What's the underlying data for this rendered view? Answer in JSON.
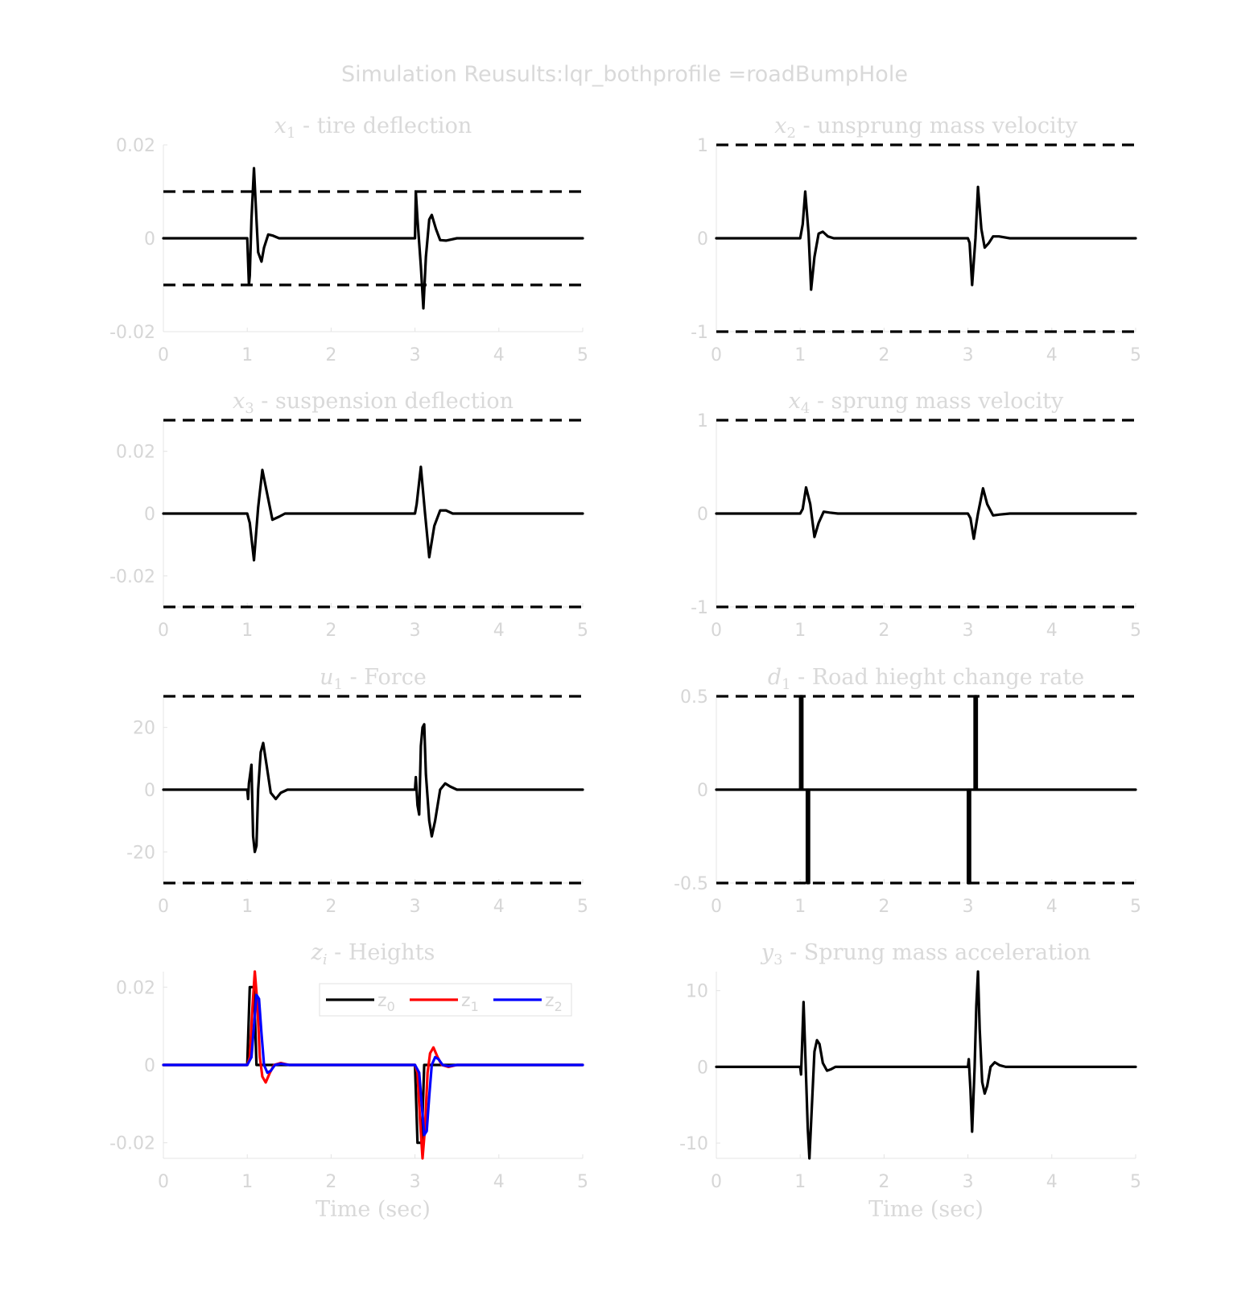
{
  "figure": {
    "title": "Simulation Reusults:lqr_bothprofile =roadBumpHole"
  },
  "chart_data": [
    {
      "type": "line",
      "title_math": "x",
      "title_sub": "1",
      "title_text": " - tire deflection",
      "xlabel": "",
      "xlim": [
        0,
        5
      ],
      "ylim": [
        -0.02,
        0.02
      ],
      "xticks": [
        "0",
        "1",
        "2",
        "3",
        "4",
        "5"
      ],
      "yticks": [
        {
          "v": 0.02,
          "t": "0.02"
        },
        {
          "v": 0,
          "t": "0"
        },
        {
          "v": -0.02,
          "t": "-0.02"
        }
      ],
      "bounds": [
        0.01,
        -0.01
      ],
      "series": [
        {
          "color": "#000000",
          "x": [
            0,
            1.0,
            1.02,
            1.03,
            1.05,
            1.08,
            1.11,
            1.13,
            1.17,
            1.2,
            1.25,
            1.3,
            1.38,
            1.5,
            3.0,
            3.01,
            3.03,
            3.07,
            3.1,
            3.13,
            3.17,
            3.2,
            3.25,
            3.3,
            3.37,
            3.5,
            5
          ],
          "y": [
            0,
            0,
            -0.01,
            -0.008,
            0.004,
            0.015,
            0.004,
            -0.003,
            -0.005,
            -0.002,
            0.0008,
            0.0006,
            0,
            0,
            0,
            0.01,
            0.004,
            -0.006,
            -0.015,
            -0.004,
            0.004,
            0.005,
            0.002,
            -0.0004,
            -0.0005,
            0,
            0
          ]
        }
      ]
    },
    {
      "type": "line",
      "title_math": "x",
      "title_sub": "2",
      "title_text": " - unsprung mass velocity",
      "xlabel": "",
      "xlim": [
        0,
        5
      ],
      "ylim": [
        -1,
        1
      ],
      "xticks": [
        "0",
        "1",
        "2",
        "3",
        "4",
        "5"
      ],
      "yticks": [
        {
          "v": 1,
          "t": "1"
        },
        {
          "v": 0,
          "t": "0"
        },
        {
          "v": -1,
          "t": "-1"
        }
      ],
      "bounds": [
        1,
        -1
      ],
      "series": [
        {
          "color": "#000000",
          "x": [
            0,
            1.0,
            1.03,
            1.06,
            1.1,
            1.13,
            1.17,
            1.22,
            1.27,
            1.33,
            1.4,
            1.55,
            3.0,
            3.02,
            3.05,
            3.09,
            3.12,
            3.16,
            3.2,
            3.25,
            3.3,
            3.37,
            3.5,
            5
          ],
          "y": [
            0,
            0,
            0.15,
            0.5,
            0.05,
            -0.55,
            -0.2,
            0.05,
            0.07,
            0.02,
            0,
            0,
            0,
            -0.05,
            -0.5,
            0,
            0.55,
            0.1,
            -0.1,
            -0.05,
            0.02,
            0.02,
            0,
            0
          ]
        }
      ]
    },
    {
      "type": "line",
      "title_math": "x",
      "title_sub": "3",
      "title_text": " - suspension deflection",
      "xlabel": "",
      "xlim": [
        0,
        5
      ],
      "ylim": [
        -0.03,
        0.03
      ],
      "xticks": [
        "0",
        "1",
        "2",
        "3",
        "4",
        "5"
      ],
      "yticks": [
        {
          "v": 0.02,
          "t": "0.02"
        },
        {
          "v": 0,
          "t": "0"
        },
        {
          "v": -0.02,
          "t": "-0.02"
        }
      ],
      "bounds": [
        0.03,
        -0.03
      ],
      "series": [
        {
          "color": "#000000",
          "x": [
            0,
            1.0,
            1.03,
            1.08,
            1.13,
            1.18,
            1.24,
            1.3,
            1.38,
            1.45,
            1.55,
            3.0,
            3.02,
            3.07,
            3.12,
            3.17,
            3.23,
            3.3,
            3.37,
            3.45,
            3.55,
            5
          ],
          "y": [
            0,
            0,
            -0.003,
            -0.015,
            0.002,
            0.014,
            0.006,
            -0.002,
            -0.001,
            0,
            0,
            0,
            0.003,
            0.015,
            0,
            -0.014,
            -0.004,
            0.001,
            0.001,
            0,
            0,
            0
          ]
        }
      ]
    },
    {
      "type": "line",
      "title_math": "x",
      "title_sub": "4",
      "title_text": " - sprung mass velocity",
      "xlabel": "",
      "xlim": [
        0,
        5
      ],
      "ylim": [
        -1,
        1
      ],
      "xticks": [
        "0",
        "1",
        "2",
        "3",
        "4",
        "5"
      ],
      "yticks": [
        {
          "v": 1,
          "t": "1"
        },
        {
          "v": 0,
          "t": "0"
        },
        {
          "v": -1,
          "t": "-1"
        }
      ],
      "bounds": [
        1,
        -1
      ],
      "series": [
        {
          "color": "#000000",
          "x": [
            0,
            1.0,
            1.03,
            1.07,
            1.12,
            1.17,
            1.22,
            1.28,
            1.35,
            1.45,
            3.0,
            3.03,
            3.07,
            3.12,
            3.18,
            3.23,
            3.3,
            3.38,
            3.5,
            5
          ],
          "y": [
            0,
            0,
            0.05,
            0.28,
            0.1,
            -0.25,
            -0.1,
            0.02,
            0.01,
            0,
            0,
            -0.05,
            -0.27,
            0,
            0.27,
            0.1,
            -0.02,
            -0.01,
            0,
            0
          ]
        }
      ]
    },
    {
      "type": "line",
      "title_math": "u",
      "title_sub": "1",
      "title_text": " - Force",
      "xlabel": "",
      "xlim": [
        0,
        5
      ],
      "ylim": [
        -30,
        30
      ],
      "xticks": [
        "0",
        "1",
        "2",
        "3",
        "4",
        "5"
      ],
      "yticks": [
        {
          "v": 20,
          "t": "20"
        },
        {
          "v": 0,
          "t": "0"
        },
        {
          "v": -20,
          "t": "-20"
        }
      ],
      "bounds": [
        30,
        -30
      ],
      "series": [
        {
          "color": "#000000",
          "x": [
            0,
            1.0,
            1.01,
            1.02,
            1.03,
            1.05,
            1.07,
            1.09,
            1.11,
            1.13,
            1.16,
            1.19,
            1.23,
            1.28,
            1.34,
            1.4,
            1.48,
            1.55,
            3.0,
            3.01,
            3.03,
            3.05,
            3.07,
            3.09,
            3.11,
            3.13,
            3.17,
            3.2,
            3.24,
            3.3,
            3.36,
            3.42,
            3.5,
            3.6,
            5
          ],
          "y": [
            0,
            0,
            -3,
            2,
            4,
            8,
            -15,
            -20,
            -18,
            0,
            12,
            15,
            8,
            -1,
            -3,
            -1,
            0,
            0,
            0,
            4,
            -5,
            -8,
            14,
            20,
            21,
            5,
            -10,
            -15,
            -10,
            0,
            2,
            1,
            0,
            0,
            0
          ]
        }
      ]
    },
    {
      "type": "line",
      "title_math": "d",
      "title_sub": "1",
      "title_text": " - Road hieght change rate",
      "xlabel": "",
      "xlim": [
        0,
        5
      ],
      "ylim": [
        -0.5,
        0.5
      ],
      "xticks": [
        "0",
        "1",
        "2",
        "3",
        "4",
        "5"
      ],
      "yticks": [
        {
          "v": 0.5,
          "t": "0.5"
        },
        {
          "v": 0,
          "t": "0"
        },
        {
          "v": -0.5,
          "t": "-0.5"
        }
      ],
      "bounds": [
        0.5,
        -0.5
      ],
      "series": [
        {
          "color": "#000000",
          "x": [
            0,
            1.0,
            1.0,
            1.005,
            1.005,
            1.01,
            1.01,
            1.015,
            1.015,
            1.02,
            1.02,
            1.025,
            1.025,
            1.03,
            1.03,
            1.08,
            1.08,
            1.085,
            1.085,
            1.09,
            1.09,
            1.095,
            1.095,
            1.1,
            1.1,
            1.105,
            1.105,
            1.11,
            1.11,
            3.0,
            3.0,
            3.005,
            3.005,
            3.01,
            3.01,
            3.015,
            3.015,
            3.02,
            3.02,
            3.025,
            3.025,
            3.03,
            3.03,
            3.08,
            3.08,
            3.085,
            3.085,
            3.09,
            3.09,
            3.095,
            3.095,
            3.1,
            3.1,
            3.105,
            3.105,
            3.11,
            3.11,
            5
          ],
          "y": [
            0,
            0,
            0.5,
            0.5,
            0,
            0,
            0.5,
            0.5,
            0,
            0,
            0.5,
            0.5,
            0,
            0,
            0,
            0,
            -0.5,
            -0.5,
            0,
            0,
            -0.5,
            -0.5,
            0,
            0,
            -0.5,
            -0.5,
            0,
            0,
            0,
            0,
            -0.5,
            -0.5,
            0,
            0,
            -0.5,
            -0.5,
            0,
            0,
            -0.5,
            -0.5,
            0,
            0,
            0,
            0,
            0.5,
            0.5,
            0,
            0,
            0.5,
            0.5,
            0,
            0,
            0.5,
            0.5,
            0,
            0,
            0,
            0
          ]
        }
      ]
    },
    {
      "type": "line",
      "title_math": "z",
      "title_sub": "i",
      "title_text": " - Heights",
      "xlabel": "Time (sec)",
      "xlim": [
        0,
        5
      ],
      "ylim": [
        -0.024,
        0.024
      ],
      "xticks": [
        "0",
        "1",
        "2",
        "3",
        "4",
        "5"
      ],
      "yticks": [
        {
          "v": 0.02,
          "t": "0.02"
        },
        {
          "v": 0,
          "t": "0"
        },
        {
          "v": -0.02,
          "t": "-0.02"
        }
      ],
      "bounds": [],
      "legend": {
        "position": "top-right",
        "entries": [
          {
            "label": "z",
            "sub": "0",
            "color": "#000000"
          },
          {
            "label": "z",
            "sub": "1",
            "color": "#ff0000"
          },
          {
            "label": "z",
            "sub": "2",
            "color": "#0000ff"
          }
        ]
      },
      "series": [
        {
          "color": "#000000",
          "x": [
            0,
            1.0,
            1.03,
            1.08,
            1.11,
            1.14,
            3.0,
            3.03,
            3.08,
            3.11,
            3.14,
            5
          ],
          "y": [
            0,
            0,
            0.02,
            0.02,
            0,
            0,
            0,
            -0.02,
            -0.02,
            0,
            0,
            0
          ]
        },
        {
          "color": "#ff0000",
          "x": [
            0,
            1.0,
            1.03,
            1.06,
            1.09,
            1.12,
            1.15,
            1.18,
            1.22,
            1.27,
            1.32,
            1.4,
            1.5,
            3.0,
            3.03,
            3.06,
            3.09,
            3.12,
            3.15,
            3.18,
            3.22,
            3.27,
            3.32,
            3.4,
            3.5,
            5
          ],
          "y": [
            0,
            0,
            0.002,
            0.014,
            0.024,
            0.016,
            0.002,
            -0.003,
            -0.0045,
            -0.002,
            0,
            0.0005,
            0,
            0,
            -0.002,
            -0.014,
            -0.024,
            -0.016,
            -0.002,
            0.003,
            0.0045,
            0.002,
            0,
            -0.0005,
            0,
            0
          ]
        },
        {
          "color": "#0000ff",
          "x": [
            0,
            1.0,
            1.05,
            1.08,
            1.11,
            1.14,
            1.17,
            1.2,
            1.24,
            1.28,
            1.33,
            1.4,
            1.5,
            3.0,
            3.05,
            3.08,
            3.11,
            3.14,
            3.17,
            3.2,
            3.24,
            3.28,
            3.33,
            3.4,
            3.5,
            5
          ],
          "y": [
            0,
            0,
            0.002,
            0.01,
            0.018,
            0.017,
            0.008,
            0,
            -0.002,
            -0.0015,
            0,
            0.0003,
            0,
            0,
            -0.002,
            -0.01,
            -0.018,
            -0.017,
            -0.008,
            0,
            0.002,
            0.0015,
            0,
            -0.0003,
            0,
            0
          ]
        }
      ]
    },
    {
      "type": "line",
      "title_math": "y",
      "title_sub": "3",
      "title_text": " - Sprung mass acceleration",
      "xlabel": "Time (sec)",
      "xlim": [
        0,
        5
      ],
      "ylim": [
        -12,
        12.5
      ],
      "xticks": [
        "0",
        "1",
        "2",
        "3",
        "4",
        "5"
      ],
      "yticks": [
        {
          "v": 10,
          "t": "10"
        },
        {
          "v": 0,
          "t": "0"
        },
        {
          "v": -10,
          "t": "-10"
        }
      ],
      "bounds": [],
      "series": [
        {
          "color": "#000000",
          "x": [
            0,
            1.0,
            1.01,
            1.02,
            1.04,
            1.06,
            1.09,
            1.11,
            1.14,
            1.17,
            1.2,
            1.23,
            1.27,
            1.32,
            1.37,
            1.42,
            1.5,
            3.0,
            3.01,
            3.03,
            3.05,
            3.08,
            3.1,
            3.12,
            3.14,
            3.17,
            3.2,
            3.23,
            3.27,
            3.32,
            3.38,
            3.45,
            3.55,
            5
          ],
          "y": [
            0,
            0,
            -1,
            2,
            8.5,
            2,
            -8,
            -12,
            -5,
            2,
            3.5,
            3,
            0.5,
            -0.5,
            -0.3,
            0,
            0,
            0,
            1,
            -3,
            -8.5,
            0,
            8,
            12.5,
            5,
            -2,
            -3.5,
            -2.5,
            0,
            0.6,
            0.2,
            0,
            0,
            0
          ]
        }
      ]
    }
  ]
}
